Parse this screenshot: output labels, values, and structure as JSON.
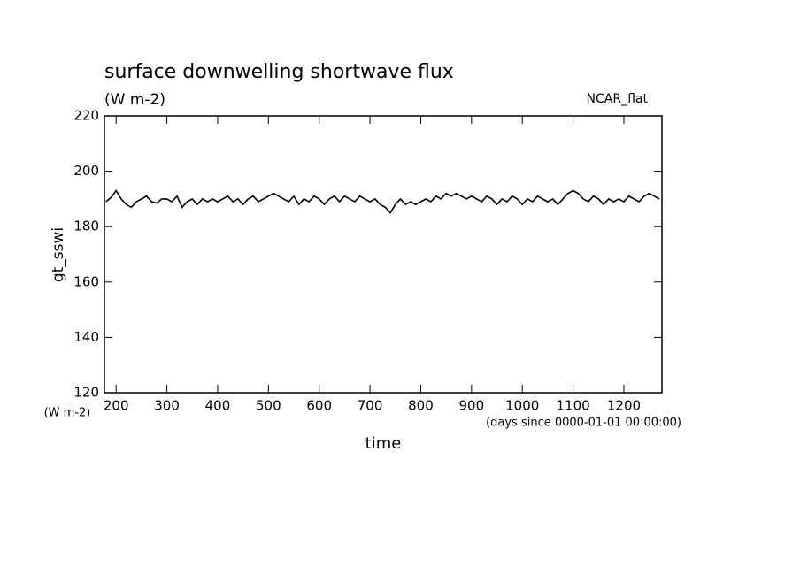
{
  "chart_data": {
    "type": "line",
    "title": "surface downwelling shortwave flux",
    "subtitle": "(W m-2)",
    "annotation": "NCAR_flat",
    "ylabel": "gt_sswi",
    "xlabel": "time",
    "yunits": "(W m-2)",
    "xunits": "(days since 0000-01-01 00:00:00)",
    "color": "#000000",
    "xlim": [
      177,
      1275
    ],
    "ylim": [
      120,
      220
    ],
    "xticks": [
      200,
      300,
      400,
      500,
      600,
      700,
      800,
      900,
      1000,
      1100,
      1200
    ],
    "yticks": [
      120,
      140,
      160,
      180,
      200,
      220
    ],
    "x": [
      180,
      190,
      200,
      210,
      220,
      230,
      240,
      250,
      260,
      270,
      280,
      290,
      300,
      310,
      320,
      330,
      340,
      350,
      360,
      370,
      380,
      390,
      400,
      410,
      420,
      430,
      440,
      450,
      460,
      470,
      480,
      490,
      500,
      510,
      520,
      530,
      540,
      550,
      560,
      570,
      580,
      590,
      600,
      610,
      620,
      630,
      640,
      650,
      660,
      670,
      680,
      690,
      700,
      710,
      720,
      730,
      740,
      750,
      760,
      770,
      780,
      790,
      800,
      810,
      820,
      830,
      840,
      850,
      860,
      870,
      880,
      890,
      900,
      910,
      920,
      930,
      940,
      950,
      960,
      970,
      980,
      990,
      1000,
      1010,
      1020,
      1030,
      1040,
      1050,
      1060,
      1070,
      1080,
      1090,
      1100,
      1110,
      1120,
      1130,
      1140,
      1150,
      1160,
      1170,
      1180,
      1190,
      1200,
      1210,
      1220,
      1230,
      1240,
      1250,
      1260,
      1270
    ],
    "values": [
      189,
      190.5,
      193,
      190,
      188,
      187,
      189,
      190,
      191,
      189,
      188.5,
      190,
      190,
      189,
      191,
      187,
      189,
      190,
      188,
      190,
      189,
      190,
      189,
      190,
      191,
      189,
      190,
      188,
      190,
      191,
      189,
      190,
      191,
      192,
      191,
      190,
      189,
      191,
      188,
      190,
      189,
      191,
      190,
      188,
      190,
      191,
      189,
      191,
      190,
      189,
      191,
      190,
      189,
      190,
      188,
      187,
      185,
      188,
      190,
      188,
      189,
      188,
      189,
      190,
      189,
      191,
      190,
      192,
      191,
      192,
      191,
      190,
      191,
      190,
      189,
      191,
      190,
      188,
      190,
      189,
      191,
      190,
      188,
      190,
      189,
      191,
      190,
      189,
      190,
      188,
      190,
      192,
      193,
      192,
      190,
      189,
      191,
      190,
      188,
      190,
      189,
      190,
      189,
      191,
      190,
      189,
      191,
      192,
      191,
      190
    ]
  }
}
